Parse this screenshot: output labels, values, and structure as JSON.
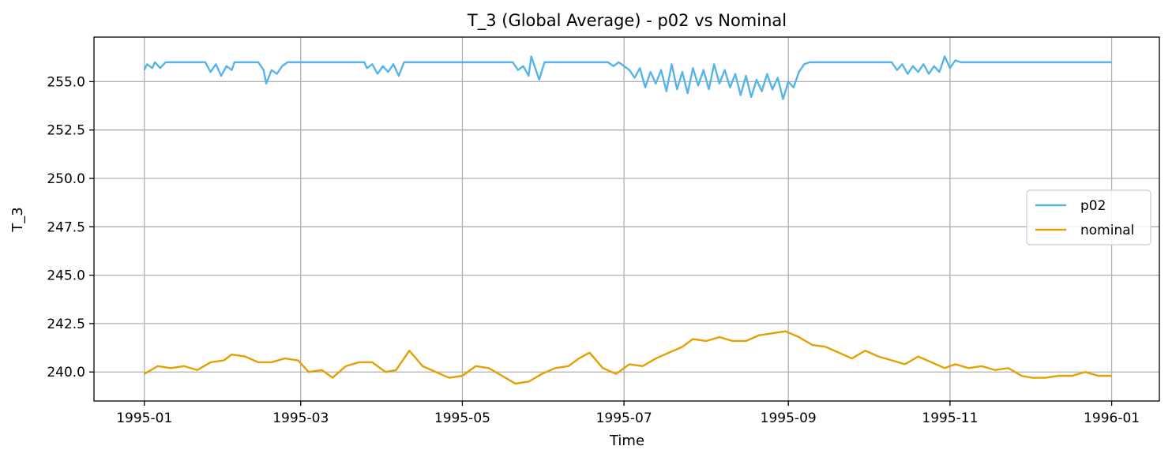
{
  "chart_data": {
    "type": "line",
    "title": "T_3 (Global Average) - p02 vs Nominal",
    "xlabel": "Time",
    "ylabel": "T_3",
    "x_ticks": [
      "1995-01",
      "1995-03",
      "1995-05",
      "1995-07",
      "1995-09",
      "1995-11",
      "1996-01"
    ],
    "y_ticks": [
      "240.0",
      "242.5",
      "245.0",
      "247.5",
      "250.0",
      "252.5",
      "255.0"
    ],
    "y_tick_values": [
      240.0,
      242.5,
      245.0,
      247.5,
      250.0,
      252.5,
      255.0
    ],
    "xlim": [
      "1994-12-13",
      "1996-01-19"
    ],
    "ylim": [
      238.5,
      257.3
    ],
    "grid": true,
    "legend_position": "center-right",
    "series": [
      {
        "name": "p02",
        "color": "#56b4e9",
        "points": [
          [
            "1995-01-01",
            255.6
          ],
          [
            "1995-01-02",
            255.9
          ],
          [
            "1995-01-04",
            255.7
          ],
          [
            "1995-01-05",
            256.0
          ],
          [
            "1995-01-07",
            255.7
          ],
          [
            "1995-01-09",
            256.0
          ],
          [
            "1995-01-24",
            256.0
          ],
          [
            "1995-01-26",
            255.5
          ],
          [
            "1995-01-28",
            255.9
          ],
          [
            "1995-01-30",
            255.3
          ],
          [
            "1995-02-01",
            255.8
          ],
          [
            "1995-02-03",
            255.6
          ],
          [
            "1995-02-04",
            256.0
          ],
          [
            "1995-02-13",
            256.0
          ],
          [
            "1995-02-15",
            255.6
          ],
          [
            "1995-02-16",
            254.9
          ],
          [
            "1995-02-18",
            255.6
          ],
          [
            "1995-02-20",
            255.4
          ],
          [
            "1995-02-22",
            255.8
          ],
          [
            "1995-02-24",
            256.0
          ],
          [
            "1995-03-25",
            256.0
          ],
          [
            "1995-03-26",
            255.7
          ],
          [
            "1995-03-28",
            255.9
          ],
          [
            "1995-03-30",
            255.4
          ],
          [
            "1995-04-01",
            255.8
          ],
          [
            "1995-04-03",
            255.5
          ],
          [
            "1995-04-05",
            255.9
          ],
          [
            "1995-04-07",
            255.3
          ],
          [
            "1995-04-09",
            256.0
          ],
          [
            "1995-05-20",
            256.0
          ],
          [
            "1995-05-22",
            255.6
          ],
          [
            "1995-05-24",
            255.8
          ],
          [
            "1995-05-26",
            255.3
          ],
          [
            "1995-05-27",
            256.3
          ],
          [
            "1995-05-29",
            255.5
          ],
          [
            "1995-05-30",
            255.1
          ],
          [
            "1995-06-01",
            256.0
          ],
          [
            "1995-06-25",
            256.0
          ],
          [
            "1995-06-27",
            255.8
          ],
          [
            "1995-06-29",
            256.0
          ],
          [
            "1995-07-01",
            255.8
          ],
          [
            "1995-07-03",
            255.6
          ],
          [
            "1995-07-05",
            255.2
          ],
          [
            "1995-07-07",
            255.7
          ],
          [
            "1995-07-09",
            254.7
          ],
          [
            "1995-07-11",
            255.5
          ],
          [
            "1995-07-13",
            254.9
          ],
          [
            "1995-07-15",
            255.6
          ],
          [
            "1995-07-17",
            254.5
          ],
          [
            "1995-07-19",
            255.9
          ],
          [
            "1995-07-21",
            254.6
          ],
          [
            "1995-07-23",
            255.5
          ],
          [
            "1995-07-25",
            254.4
          ],
          [
            "1995-07-27",
            255.7
          ],
          [
            "1995-07-29",
            254.8
          ],
          [
            "1995-07-31",
            255.6
          ],
          [
            "1995-08-02",
            254.6
          ],
          [
            "1995-08-04",
            255.9
          ],
          [
            "1995-08-06",
            254.9
          ],
          [
            "1995-08-08",
            255.6
          ],
          [
            "1995-08-10",
            254.7
          ],
          [
            "1995-08-12",
            255.4
          ],
          [
            "1995-08-14",
            254.3
          ],
          [
            "1995-08-16",
            255.3
          ],
          [
            "1995-08-18",
            254.2
          ],
          [
            "1995-08-20",
            255.1
          ],
          [
            "1995-08-22",
            254.5
          ],
          [
            "1995-08-24",
            255.4
          ],
          [
            "1995-08-26",
            254.6
          ],
          [
            "1995-08-28",
            255.2
          ],
          [
            "1995-08-30",
            254.1
          ],
          [
            "1995-09-01",
            255.0
          ],
          [
            "1995-09-03",
            254.7
          ],
          [
            "1995-09-05",
            255.5
          ],
          [
            "1995-09-07",
            255.9
          ],
          [
            "1995-09-09",
            256.0
          ],
          [
            "1995-10-10",
            256.0
          ],
          [
            "1995-10-12",
            255.6
          ],
          [
            "1995-10-14",
            255.9
          ],
          [
            "1995-10-16",
            255.4
          ],
          [
            "1995-10-18",
            255.8
          ],
          [
            "1995-10-20",
            255.5
          ],
          [
            "1995-10-22",
            255.9
          ],
          [
            "1995-10-24",
            255.4
          ],
          [
            "1995-10-26",
            255.8
          ],
          [
            "1995-10-28",
            255.5
          ],
          [
            "1995-10-30",
            256.3
          ],
          [
            "1995-11-01",
            255.7
          ],
          [
            "1995-11-03",
            256.1
          ],
          [
            "1995-11-05",
            256.0
          ],
          [
            "1996-01-01",
            256.0
          ]
        ]
      },
      {
        "name": "nominal",
        "color": "#e69f00",
        "points": [
          [
            "1995-01-01",
            239.9
          ],
          [
            "1995-01-06",
            240.3
          ],
          [
            "1995-01-11",
            240.2
          ],
          [
            "1995-01-16",
            240.3
          ],
          [
            "1995-01-21",
            240.1
          ],
          [
            "1995-01-26",
            240.5
          ],
          [
            "1995-01-31",
            240.6
          ],
          [
            "1995-02-03",
            240.9
          ],
          [
            "1995-02-08",
            240.8
          ],
          [
            "1995-02-13",
            240.5
          ],
          [
            "1995-02-18",
            240.5
          ],
          [
            "1995-02-23",
            240.7
          ],
          [
            "1995-02-28",
            240.6
          ],
          [
            "1995-03-04",
            240.0
          ],
          [
            "1995-03-09",
            240.1
          ],
          [
            "1995-03-13",
            239.7
          ],
          [
            "1995-03-18",
            240.3
          ],
          [
            "1995-03-23",
            240.5
          ],
          [
            "1995-03-28",
            240.5
          ],
          [
            "1995-04-02",
            240.0
          ],
          [
            "1995-04-06",
            240.1
          ],
          [
            "1995-04-11",
            241.1
          ],
          [
            "1995-04-16",
            240.3
          ],
          [
            "1995-04-21",
            240.0
          ],
          [
            "1995-04-26",
            239.7
          ],
          [
            "1995-05-01",
            239.8
          ],
          [
            "1995-05-06",
            240.3
          ],
          [
            "1995-05-11",
            240.2
          ],
          [
            "1995-05-16",
            239.8
          ],
          [
            "1995-05-21",
            239.4
          ],
          [
            "1995-05-26",
            239.5
          ],
          [
            "1995-05-31",
            239.9
          ],
          [
            "1995-06-05",
            240.2
          ],
          [
            "1995-06-10",
            240.3
          ],
          [
            "1995-06-14",
            240.7
          ],
          [
            "1995-06-18",
            241.0
          ],
          [
            "1995-06-23",
            240.2
          ],
          [
            "1995-06-28",
            239.9
          ],
          [
            "1995-07-03",
            240.4
          ],
          [
            "1995-07-08",
            240.3
          ],
          [
            "1995-07-13",
            240.7
          ],
          [
            "1995-07-18",
            241.0
          ],
          [
            "1995-07-23",
            241.3
          ],
          [
            "1995-07-27",
            241.7
          ],
          [
            "1995-08-01",
            241.6
          ],
          [
            "1995-08-06",
            241.8
          ],
          [
            "1995-08-11",
            241.6
          ],
          [
            "1995-08-16",
            241.6
          ],
          [
            "1995-08-21",
            241.9
          ],
          [
            "1995-08-26",
            242.0
          ],
          [
            "1995-08-31",
            242.1
          ],
          [
            "1995-09-05",
            241.8
          ],
          [
            "1995-09-10",
            241.4
          ],
          [
            "1995-09-15",
            241.3
          ],
          [
            "1995-09-20",
            241.0
          ],
          [
            "1995-09-25",
            240.7
          ],
          [
            "1995-09-30",
            241.1
          ],
          [
            "1995-10-05",
            240.8
          ],
          [
            "1995-10-10",
            240.6
          ],
          [
            "1995-10-15",
            240.4
          ],
          [
            "1995-10-20",
            240.8
          ],
          [
            "1995-10-25",
            240.5
          ],
          [
            "1995-10-30",
            240.2
          ],
          [
            "1995-11-03",
            240.4
          ],
          [
            "1995-11-08",
            240.2
          ],
          [
            "1995-11-13",
            240.3
          ],
          [
            "1995-11-18",
            240.1
          ],
          [
            "1995-11-23",
            240.2
          ],
          [
            "1995-11-28",
            239.8
          ],
          [
            "1995-12-02",
            239.7
          ],
          [
            "1995-12-07",
            239.7
          ],
          [
            "1995-12-12",
            239.8
          ],
          [
            "1995-12-17",
            239.8
          ],
          [
            "1995-12-22",
            240.0
          ],
          [
            "1995-12-27",
            239.8
          ],
          [
            "1996-01-01",
            239.8
          ]
        ]
      }
    ]
  }
}
